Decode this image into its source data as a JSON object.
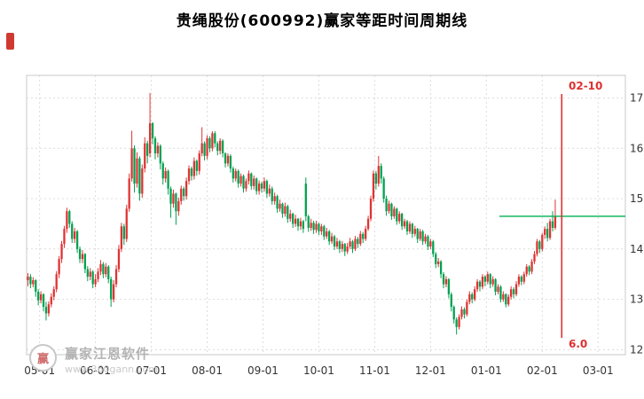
{
  "watermark": {
    "logo_text": "赢",
    "brand": "赢家江恩软件",
    "url": "www.360gann.com"
  },
  "chart_data": {
    "type": "candlestick",
    "title": "贵绳股份(600992)赢家等距时间周期线",
    "ylim": [
      11.9,
      17.45
    ],
    "y_ticks": [
      12,
      13,
      14,
      15,
      16,
      17
    ],
    "grid": true,
    "legend": "none",
    "x_span": 230.5,
    "x_ticks": [
      {
        "label": "05-01",
        "pos": 5
      },
      {
        "label": "06-01",
        "pos": 26.5
      },
      {
        "label": "07-01",
        "pos": 48
      },
      {
        "label": "08-01",
        "pos": 69.5
      },
      {
        "label": "09-01",
        "pos": 91
      },
      {
        "label": "10-01",
        "pos": 112.5
      },
      {
        "label": "11-01",
        "pos": 134
      },
      {
        "label": "12-01",
        "pos": 155.5
      },
      {
        "label": "01-01",
        "pos": 177
      },
      {
        "label": "02-01",
        "pos": 198.5
      },
      {
        "label": "03-01",
        "pos": 220
      }
    ],
    "colors": {
      "up": "#e03232",
      "down": "#00a150",
      "grid": "#dcdcdc",
      "frame": "#c8c8c8",
      "axis_text": "#333333"
    },
    "annotations": {
      "vline": {
        "pos": 206,
        "date_label": "02-10",
        "value_label": "6.0",
        "color": "#e03030"
      },
      "hline": {
        "value": 14.65,
        "from_pos": 182,
        "color": "#00b050"
      }
    },
    "candles": [
      [
        13.38,
        13.52,
        13.26,
        13.45
      ],
      [
        13.45,
        13.5,
        13.22,
        13.3
      ],
      [
        13.3,
        13.44,
        13.24,
        13.38
      ],
      [
        13.38,
        13.4,
        13.05,
        13.15
      ],
      [
        13.15,
        13.2,
        12.88,
        12.98
      ],
      [
        12.98,
        13.16,
        12.92,
        13.1
      ],
      [
        13.1,
        13.12,
        12.76,
        12.85
      ],
      [
        12.85,
        12.95,
        12.58,
        12.72
      ],
      [
        12.72,
        12.96,
        12.66,
        12.9
      ],
      [
        12.9,
        13.12,
        12.84,
        13.05
      ],
      [
        13.05,
        13.26,
        12.98,
        13.2
      ],
      [
        13.2,
        13.56,
        13.14,
        13.5
      ],
      [
        13.5,
        13.86,
        13.42,
        13.8
      ],
      [
        13.8,
        14.16,
        13.72,
        14.1
      ],
      [
        14.1,
        14.46,
        14.02,
        14.4
      ],
      [
        14.4,
        14.82,
        14.32,
        14.75
      ],
      [
        14.75,
        14.78,
        14.42,
        14.5
      ],
      [
        14.5,
        14.55,
        14.12,
        14.2
      ],
      [
        14.2,
        14.42,
        14.12,
        14.35
      ],
      [
        14.35,
        14.38,
        13.92,
        14.0
      ],
      [
        14.0,
        14.05,
        13.72,
        13.8
      ],
      [
        13.8,
        13.98,
        13.72,
        13.9
      ],
      [
        13.9,
        13.92,
        13.52,
        13.6
      ],
      [
        13.6,
        13.66,
        13.36,
        13.45
      ],
      [
        13.45,
        13.62,
        13.38,
        13.55
      ],
      [
        13.55,
        13.58,
        13.22,
        13.3
      ],
      [
        13.3,
        13.5,
        13.24,
        13.4
      ],
      [
        13.4,
        13.62,
        13.34,
        13.55
      ],
      [
        13.55,
        13.78,
        13.48,
        13.7
      ],
      [
        13.7,
        13.74,
        13.42,
        13.5
      ],
      [
        13.5,
        13.72,
        13.44,
        13.65
      ],
      [
        13.65,
        13.68,
        13.32,
        13.4
      ],
      [
        13.4,
        13.45,
        12.85,
        13.0
      ],
      [
        13.0,
        13.38,
        12.94,
        13.3
      ],
      [
        13.3,
        13.68,
        13.24,
        13.6
      ],
      [
        13.6,
        14.08,
        13.54,
        14.0
      ],
      [
        14.0,
        14.52,
        13.94,
        14.45
      ],
      [
        14.45,
        14.5,
        14.08,
        14.2
      ],
      [
        14.2,
        14.88,
        14.14,
        14.8
      ],
      [
        14.8,
        15.5,
        14.74,
        15.4
      ],
      [
        15.4,
        16.35,
        15.34,
        16.0
      ],
      [
        16.0,
        16.06,
        15.12,
        15.3
      ],
      [
        15.3,
        15.92,
        15.22,
        15.8
      ],
      [
        15.8,
        15.84,
        14.96,
        15.1
      ],
      [
        15.1,
        15.68,
        15.02,
        15.6
      ],
      [
        15.6,
        16.22,
        15.52,
        16.1
      ],
      [
        16.1,
        16.15,
        15.7,
        15.85
      ],
      [
        15.9,
        17.1,
        15.82,
        16.5
      ],
      [
        16.5,
        16.52,
        16.08,
        16.2
      ],
      [
        16.2,
        16.24,
        15.78,
        15.9
      ],
      [
        15.9,
        16.12,
        15.82,
        16.05
      ],
      [
        16.05,
        16.08,
        15.58,
        15.7
      ],
      [
        15.7,
        15.74,
        15.28,
        15.4
      ],
      [
        15.4,
        15.62,
        15.32,
        15.55
      ],
      [
        15.55,
        15.58,
        15.08,
        15.2
      ],
      [
        15.2,
        15.24,
        14.62,
        14.9
      ],
      [
        14.9,
        15.18,
        14.82,
        15.1
      ],
      [
        15.1,
        15.12,
        14.48,
        14.75
      ],
      [
        14.75,
        15.02,
        14.66,
        14.95
      ],
      [
        14.95,
        15.26,
        14.88,
        15.2
      ],
      [
        15.2,
        15.24,
        14.96,
        15.05
      ],
      [
        15.05,
        15.42,
        14.98,
        15.35
      ],
      [
        15.35,
        15.66,
        15.28,
        15.6
      ],
      [
        15.6,
        15.64,
        15.36,
        15.45
      ],
      [
        15.45,
        15.82,
        15.38,
        15.75
      ],
      [
        15.75,
        15.78,
        15.46,
        15.55
      ],
      [
        15.55,
        15.96,
        15.48,
        15.9
      ],
      [
        15.9,
        16.42,
        15.84,
        16.1
      ],
      [
        16.1,
        16.14,
        15.76,
        15.85
      ],
      [
        15.85,
        16.26,
        15.78,
        16.2
      ],
      [
        16.2,
        16.24,
        15.92,
        16.0
      ],
      [
        16.0,
        16.34,
        15.94,
        16.3
      ],
      [
        16.3,
        16.34,
        16.02,
        16.1
      ],
      [
        16.1,
        16.14,
        15.86,
        15.95
      ],
      [
        15.95,
        16.2,
        15.88,
        16.15
      ],
      [
        16.15,
        16.18,
        15.82,
        15.9
      ],
      [
        15.9,
        15.92,
        15.62,
        15.7
      ],
      [
        15.7,
        15.9,
        15.64,
        15.85
      ],
      [
        15.85,
        15.88,
        15.52,
        15.6
      ],
      [
        15.6,
        15.64,
        15.32,
        15.4
      ],
      [
        15.4,
        15.6,
        15.34,
        15.55
      ],
      [
        15.55,
        15.58,
        15.22,
        15.3
      ],
      [
        15.3,
        15.5,
        15.24,
        15.45
      ],
      [
        15.45,
        15.48,
        15.12,
        15.2
      ],
      [
        15.2,
        15.4,
        15.14,
        15.35
      ],
      [
        15.35,
        15.56,
        15.28,
        15.5
      ],
      [
        15.5,
        15.52,
        15.18,
        15.25
      ],
      [
        15.25,
        15.46,
        15.18,
        15.4
      ],
      [
        15.4,
        15.42,
        15.08,
        15.15
      ],
      [
        15.15,
        15.36,
        15.08,
        15.3
      ],
      [
        15.3,
        15.34,
        15.12,
        15.2
      ],
      [
        15.2,
        15.42,
        15.14,
        15.35
      ],
      [
        15.35,
        15.38,
        15.02,
        15.1
      ],
      [
        15.1,
        15.28,
        15.04,
        15.2
      ],
      [
        15.2,
        15.24,
        14.88,
        14.95
      ],
      [
        14.95,
        15.12,
        14.88,
        15.05
      ],
      [
        15.05,
        15.08,
        14.72,
        14.8
      ],
      [
        14.8,
        14.98,
        14.74,
        14.9
      ],
      [
        14.9,
        14.92,
        14.62,
        14.7
      ],
      [
        14.7,
        14.92,
        14.64,
        14.85
      ],
      [
        14.85,
        14.88,
        14.52,
        14.6
      ],
      [
        14.6,
        14.78,
        14.54,
        14.7
      ],
      [
        14.7,
        14.72,
        14.42,
        14.5
      ],
      [
        14.5,
        14.68,
        14.44,
        14.6
      ],
      [
        14.6,
        14.62,
        14.36,
        14.45
      ],
      [
        14.45,
        14.62,
        14.38,
        14.55
      ],
      [
        14.55,
        14.58,
        14.32,
        14.4
      ],
      [
        15.3,
        15.42,
        14.55,
        14.65
      ],
      [
        14.65,
        14.68,
        14.34,
        14.42
      ],
      [
        14.42,
        14.6,
        14.36,
        14.52
      ],
      [
        14.52,
        14.56,
        14.3,
        14.38
      ],
      [
        14.38,
        14.56,
        14.32,
        14.5
      ],
      [
        14.5,
        14.52,
        14.28,
        14.35
      ],
      [
        14.35,
        14.5,
        14.28,
        14.45
      ],
      [
        14.45,
        14.48,
        14.18,
        14.25
      ],
      [
        14.25,
        14.42,
        14.2,
        14.35
      ],
      [
        14.35,
        14.38,
        14.08,
        14.15
      ],
      [
        14.15,
        14.32,
        14.1,
        14.25
      ],
      [
        14.25,
        14.28,
        13.98,
        14.05
      ],
      [
        14.05,
        14.22,
        14.0,
        14.15
      ],
      [
        14.15,
        14.18,
        13.92,
        14.0
      ],
      [
        14.0,
        14.16,
        13.94,
        14.1
      ],
      [
        14.1,
        14.12,
        13.86,
        13.95
      ],
      [
        13.95,
        14.12,
        13.9,
        14.05
      ],
      [
        14.05,
        14.22,
        14.0,
        14.15
      ],
      [
        14.15,
        14.18,
        13.92,
        14.0
      ],
      [
        14.0,
        14.26,
        13.96,
        14.2
      ],
      [
        14.2,
        14.24,
        14.02,
        14.1
      ],
      [
        14.1,
        14.36,
        14.06,
        14.3
      ],
      [
        14.3,
        14.34,
        14.12,
        14.2
      ],
      [
        14.2,
        14.46,
        14.16,
        14.4
      ],
      [
        14.4,
        14.66,
        14.36,
        14.6
      ],
      [
        14.6,
        15.06,
        14.55,
        15.0
      ],
      [
        15.0,
        15.56,
        14.94,
        15.5
      ],
      [
        15.5,
        15.55,
        15.18,
        15.3
      ],
      [
        15.3,
        15.85,
        15.24,
        15.65
      ],
      [
        15.65,
        15.7,
        15.3,
        15.4
      ],
      [
        15.4,
        15.44,
        14.92,
        15.0
      ],
      [
        15.0,
        15.06,
        14.66,
        14.75
      ],
      [
        14.75,
        14.96,
        14.7,
        14.9
      ],
      [
        14.9,
        14.92,
        14.58,
        14.65
      ],
      [
        14.65,
        14.85,
        14.6,
        14.8
      ],
      [
        14.8,
        14.82,
        14.48,
        14.55
      ],
      [
        14.55,
        14.75,
        14.5,
        14.7
      ],
      [
        14.7,
        14.72,
        14.38,
        14.45
      ],
      [
        14.45,
        14.6,
        14.4,
        14.55
      ],
      [
        14.55,
        14.58,
        14.28,
        14.35
      ],
      [
        14.35,
        14.55,
        14.3,
        14.5
      ],
      [
        14.5,
        14.52,
        14.22,
        14.3
      ],
      [
        14.3,
        14.46,
        14.25,
        14.4
      ],
      [
        14.4,
        14.42,
        14.12,
        14.2
      ],
      [
        14.2,
        14.4,
        14.16,
        14.35
      ],
      [
        14.35,
        14.38,
        14.08,
        14.15
      ],
      [
        14.15,
        14.3,
        14.1,
        14.25
      ],
      [
        14.25,
        14.28,
        13.98,
        14.05
      ],
      [
        14.05,
        14.2,
        14.0,
        14.15
      ],
      [
        14.15,
        14.18,
        13.84,
        13.9
      ],
      [
        13.9,
        13.94,
        13.62,
        13.7
      ],
      [
        13.7,
        13.82,
        13.64,
        13.75
      ],
      [
        13.75,
        13.78,
        13.42,
        13.5
      ],
      [
        13.5,
        13.54,
        13.22,
        13.3
      ],
      [
        13.3,
        13.46,
        13.24,
        13.4
      ],
      [
        13.4,
        13.42,
        13.02,
        13.1
      ],
      [
        13.1,
        13.14,
        12.76,
        12.85
      ],
      [
        12.85,
        12.88,
        12.52,
        12.6
      ],
      [
        12.6,
        12.64,
        12.3,
        12.45
      ],
      [
        12.45,
        12.7,
        12.4,
        12.65
      ],
      [
        12.65,
        12.86,
        12.6,
        12.8
      ],
      [
        12.8,
        12.84,
        12.62,
        12.7
      ],
      [
        12.7,
        13.0,
        12.66,
        12.95
      ],
      [
        12.95,
        13.16,
        12.9,
        13.1
      ],
      [
        13.1,
        13.14,
        12.92,
        13.0
      ],
      [
        13.0,
        13.26,
        12.96,
        13.2
      ],
      [
        13.2,
        13.4,
        13.15,
        13.35
      ],
      [
        13.35,
        13.38,
        13.16,
        13.25
      ],
      [
        13.25,
        13.5,
        13.2,
        13.45
      ],
      [
        13.45,
        13.48,
        13.26,
        13.35
      ],
      [
        13.35,
        13.55,
        13.3,
        13.5
      ],
      [
        13.5,
        13.52,
        13.22,
        13.3
      ],
      [
        13.3,
        13.46,
        13.25,
        13.4
      ],
      [
        13.4,
        13.42,
        13.08,
        13.15
      ],
      [
        13.15,
        13.3,
        13.1,
        13.25
      ],
      [
        13.25,
        13.28,
        12.94,
        13.0
      ],
      [
        13.0,
        13.16,
        12.95,
        13.1
      ],
      [
        13.1,
        13.12,
        12.84,
        12.9
      ],
      [
        12.9,
        13.1,
        12.86,
        13.05
      ],
      [
        13.05,
        13.26,
        13.0,
        13.2
      ],
      [
        13.2,
        13.24,
        13.02,
        13.1
      ],
      [
        13.1,
        13.36,
        13.06,
        13.3
      ],
      [
        13.3,
        13.5,
        13.25,
        13.45
      ],
      [
        13.45,
        13.48,
        13.28,
        13.35
      ],
      [
        13.35,
        13.55,
        13.3,
        13.5
      ],
      [
        13.5,
        13.7,
        13.45,
        13.65
      ],
      [
        13.65,
        13.68,
        13.48,
        13.55
      ],
      [
        13.55,
        13.8,
        13.5,
        13.75
      ],
      [
        13.75,
        13.96,
        13.7,
        13.9
      ],
      [
        13.9,
        14.2,
        13.85,
        14.15
      ],
      [
        14.15,
        14.18,
        13.92,
        14.0
      ],
      [
        14.0,
        14.32,
        13.95,
        14.28
      ],
      [
        14.28,
        14.45,
        14.2,
        14.4
      ],
      [
        14.4,
        14.52,
        14.15,
        14.22
      ],
      [
        14.22,
        14.6,
        14.18,
        14.55
      ],
      [
        14.55,
        14.75,
        14.35,
        14.42
      ],
      [
        14.42,
        14.98,
        14.38,
        14.65
      ]
    ]
  }
}
